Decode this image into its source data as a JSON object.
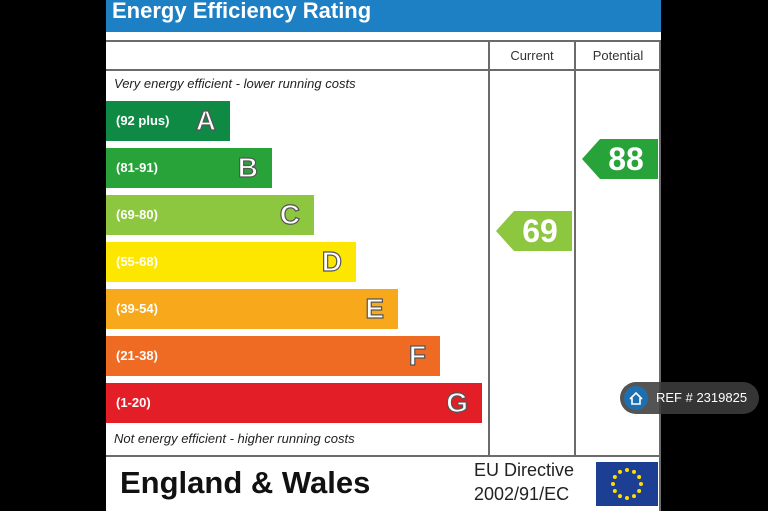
{
  "header": {
    "title": "Energy Efficiency Rating"
  },
  "columns": {
    "current": "Current",
    "potential": "Potential"
  },
  "notes": {
    "top": "Very energy efficient - lower running costs",
    "bottom": "Not energy efficient - higher running costs"
  },
  "chart_data": {
    "type": "bar",
    "bands": [
      {
        "letter": "A",
        "range": "(92 plus)",
        "color": "#0f8a44"
      },
      {
        "letter": "B",
        "range": "(81-91)",
        "color": "#28a33a"
      },
      {
        "letter": "C",
        "range": "(69-80)",
        "color": "#8dc63f"
      },
      {
        "letter": "D",
        "range": "(55-68)",
        "color": "#fde600"
      },
      {
        "letter": "E",
        "range": "(39-54)",
        "color": "#f7a81b"
      },
      {
        "letter": "F",
        "range": "(21-38)",
        "color": "#ef6b23"
      },
      {
        "letter": "G",
        "range": "(1-20)",
        "color": "#e31e26"
      }
    ],
    "current": {
      "value": 69,
      "band": "C",
      "color": "#8dc63f"
    },
    "potential": {
      "value": 88,
      "band": "B",
      "color": "#28a33a"
    }
  },
  "footer": {
    "region": "England & Wales",
    "directive_line1": "EU Directive",
    "directive_line2": "2002/91/EC"
  },
  "badge": {
    "text": "REF # 2319825",
    "icon": "home-icon"
  }
}
